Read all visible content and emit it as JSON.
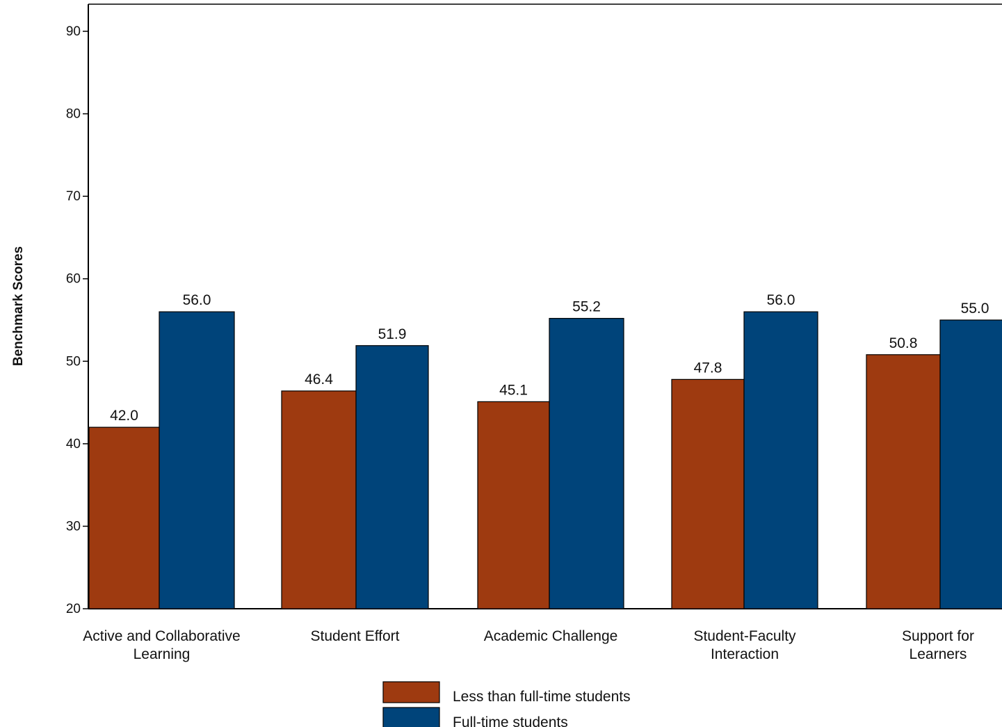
{
  "chart_data": {
    "type": "bar",
    "title": "",
    "xlabel": "",
    "ylabel": "Benchmark Scores",
    "ylim": [
      20,
      90
    ],
    "yticks": [
      20,
      30,
      40,
      50,
      60,
      70,
      80,
      90
    ],
    "grid": false,
    "legend_position": "bottom-center",
    "categories": [
      [
        "Active and Collaborative",
        "Learning"
      ],
      [
        "Student Effort"
      ],
      [
        "Academic Challenge"
      ],
      [
        "Student-Faculty",
        "Interaction"
      ],
      [
        "Support for",
        "Learners"
      ]
    ],
    "series": [
      {
        "name": "Less than full-time students",
        "color": "#9e3a10",
        "values": [
          42.0,
          46.4,
          45.1,
          47.8,
          50.8
        ],
        "labels": [
          "42.0",
          "46.4",
          "45.1",
          "47.8",
          "50.8"
        ]
      },
      {
        "name": "Full-time students",
        "color": "#00447a",
        "values": [
          56.0,
          51.9,
          55.2,
          56.0,
          55.0
        ],
        "labels": [
          "56.0",
          "51.9",
          "55.2",
          "56.0",
          "55.0"
        ]
      }
    ]
  }
}
